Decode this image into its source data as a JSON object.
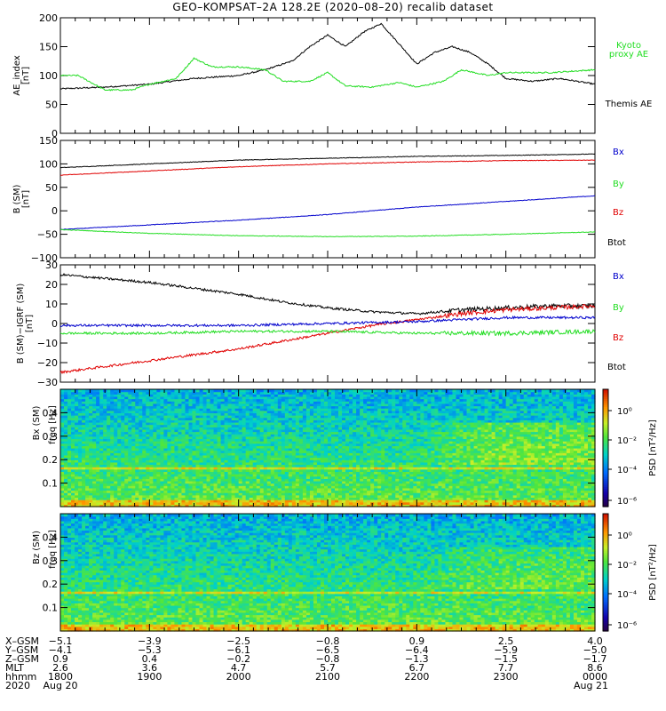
{
  "title": "GEO–KOMPSAT–2A 128.2E (2020–08–20) recalib dataset",
  "colors": {
    "black": "#000000",
    "red": "#e00000",
    "green": "#22dd22",
    "blue": "#0000cc"
  },
  "chart_data": [
    {
      "type": "line",
      "panel": "ae_index",
      "ylabel": "AE_index",
      "yunit": "[nT]",
      "ylim": [
        0,
        200
      ],
      "yticks": [
        "0",
        "50",
        "100",
        "150",
        "200"
      ],
      "legend": [
        {
          "label": "Kyoto\nproxy AE",
          "color": "green",
          "lines": [
            "Kyoto",
            "proxy AE"
          ]
        },
        {
          "label": "Themis AE",
          "color": "black",
          "lines": [
            "Themis AE"
          ]
        }
      ],
      "x_range_hours": [
        18,
        24
      ],
      "series": [
        {
          "name": "Themis AE",
          "color": "black",
          "x": [
            18.0,
            18.5,
            19.0,
            19.5,
            20.0,
            20.3,
            20.6,
            20.8,
            21.0,
            21.2,
            21.4,
            21.6,
            21.8,
            22.0,
            22.2,
            22.4,
            22.6,
            22.8,
            23.0,
            23.3,
            23.6,
            24.0
          ],
          "values": [
            77,
            80,
            85,
            95,
            100,
            110,
            125,
            150,
            170,
            150,
            175,
            190,
            155,
            120,
            140,
            150,
            140,
            120,
            95,
            90,
            95,
            85
          ]
        },
        {
          "name": "Kyoto proxy AE",
          "color": "green",
          "x": [
            18.0,
            18.2,
            18.5,
            18.8,
            19.0,
            19.3,
            19.5,
            19.7,
            20.0,
            20.3,
            20.5,
            20.8,
            21.0,
            21.2,
            21.5,
            21.8,
            22.0,
            22.3,
            22.5,
            22.8,
            23.0,
            23.5,
            24.0
          ],
          "values": [
            100,
            100,
            75,
            75,
            85,
            95,
            130,
            115,
            115,
            110,
            90,
            90,
            105,
            82,
            80,
            88,
            80,
            90,
            110,
            100,
            105,
            105,
            110
          ]
        }
      ]
    },
    {
      "type": "line",
      "panel": "b_sm",
      "ylabel": "B (SM)",
      "yunit": "[nT]",
      "ylim": [
        -100,
        150
      ],
      "yticks": [
        "−100",
        "−50",
        "0",
        "50",
        "100",
        "150"
      ],
      "legend": [
        {
          "label": "Bx",
          "color": "blue"
        },
        {
          "label": "By",
          "color": "green"
        },
        {
          "label": "Bz",
          "color": "red"
        },
        {
          "label": "Btot",
          "color": "black"
        }
      ],
      "series": [
        {
          "name": "Btot",
          "color": "black",
          "x": [
            18,
            19,
            20,
            21,
            22,
            23,
            24
          ],
          "values": [
            92,
            100,
            108,
            112,
            116,
            118,
            121
          ]
        },
        {
          "name": "Bz",
          "color": "red",
          "x": [
            18,
            19,
            20,
            21,
            22,
            23,
            24
          ],
          "values": [
            76,
            85,
            94,
            100,
            104,
            107,
            108
          ]
        },
        {
          "name": "Bx",
          "color": "blue",
          "x": [
            18,
            19,
            20,
            21,
            22,
            23,
            24
          ],
          "values": [
            -40,
            -30,
            -20,
            -8,
            8,
            20,
            32
          ]
        },
        {
          "name": "By",
          "color": "green",
          "x": [
            18,
            19,
            20,
            21,
            22,
            23,
            24
          ],
          "values": [
            -40,
            -48,
            -53,
            -55,
            -54,
            -50,
            -45
          ]
        }
      ]
    },
    {
      "type": "line",
      "panel": "b_minus_igrf",
      "ylabel": "B (SM)−IGRF (SM)",
      "yunit": "[nT]",
      "ylim": [
        -30,
        30
      ],
      "yticks": [
        "−30",
        "−20",
        "−10",
        "0",
        "10",
        "20",
        "30"
      ],
      "legend": [
        {
          "label": "Bx",
          "color": "blue"
        },
        {
          "label": "By",
          "color": "green"
        },
        {
          "label": "Bz",
          "color": "red"
        },
        {
          "label": "Btot",
          "color": "black"
        }
      ],
      "series": [
        {
          "name": "Btot",
          "color": "black",
          "x": [
            18,
            18.5,
            19,
            19.5,
            20,
            20.5,
            21,
            21.5,
            22,
            22.5,
            23,
            23.5,
            24
          ],
          "values": [
            25,
            23,
            21,
            18,
            15,
            11,
            8,
            6,
            5,
            7,
            8,
            9,
            9
          ]
        },
        {
          "name": "Bz",
          "color": "red",
          "x": [
            18,
            18.5,
            19,
            19.5,
            20,
            20.5,
            21,
            21.5,
            22,
            22.5,
            23,
            23.5,
            24
          ],
          "values": [
            -25,
            -22,
            -19,
            -16,
            -13,
            -9,
            -5,
            -1,
            2,
            5,
            7,
            8,
            9
          ]
        },
        {
          "name": "Bx",
          "color": "blue",
          "x": [
            18,
            19,
            20,
            21,
            22,
            23,
            24
          ],
          "values": [
            -1,
            -1,
            -1,
            0,
            1,
            3,
            3
          ]
        },
        {
          "name": "By",
          "color": "green",
          "x": [
            18,
            19,
            20,
            21,
            22,
            23,
            24
          ],
          "values": [
            -5,
            -5,
            -4,
            -4,
            -5,
            -5,
            -4
          ]
        }
      ]
    },
    {
      "type": "heatmap",
      "panel": "spec_bx",
      "ylabel": "Bx (SM)",
      "yunit": "freq [Hz]",
      "ylim": [
        0,
        0.5
      ],
      "yticks": [
        "0.1",
        "0.2",
        "0.3",
        "0.4"
      ],
      "colorbar_label": "PSD [nT²/Hz]",
      "colorbar_ticks": [
        "10⁰",
        "10⁻²",
        "10⁻⁴",
        "10⁻⁶"
      ],
      "line_freq_hz": 0.167
    },
    {
      "type": "heatmap",
      "panel": "spec_bz",
      "ylabel": "Bz (SM)",
      "yunit": "freq [Hz]",
      "ylim": [
        0,
        0.5
      ],
      "yticks": [
        "0.1",
        "0.2",
        "0.3",
        "0.4"
      ],
      "colorbar_label": "PSD [nT²/Hz]",
      "colorbar_ticks": [
        "10⁰",
        "10⁻²",
        "10⁻⁴",
        "10⁻⁶"
      ],
      "line_freq_hz": 0.167
    }
  ],
  "x_axis": {
    "row_labels": [
      "X–GSM",
      "Y–GSM",
      "Z–GSM",
      "MLT",
      "hhmm",
      "2020"
    ],
    "columns": [
      {
        "hour": 18,
        "rows": [
          "−5.1",
          "−4.1",
          "0.9",
          "2.6",
          "1800",
          "Aug 20"
        ]
      },
      {
        "hour": 19,
        "rows": [
          "−3.9",
          "−5.3",
          "0.4",
          "3.6",
          "1900",
          ""
        ]
      },
      {
        "hour": 20,
        "rows": [
          "−2.5",
          "−6.1",
          "−0.2",
          "4.7",
          "2000",
          ""
        ]
      },
      {
        "hour": 21,
        "rows": [
          "−0.8",
          "−6.5",
          "−0.8",
          "5.7",
          "2100",
          ""
        ]
      },
      {
        "hour": 22,
        "rows": [
          "0.9",
          "−6.4",
          "−1.3",
          "6.7",
          "2200",
          ""
        ]
      },
      {
        "hour": 23,
        "rows": [
          "2.5",
          "−5.9",
          "−1.5",
          "7.7",
          "2300",
          ""
        ]
      },
      {
        "hour": 24,
        "rows": [
          "4.0",
          "−5.0",
          "−1.7",
          "8.6",
          "0000",
          "Aug 21"
        ]
      }
    ]
  }
}
